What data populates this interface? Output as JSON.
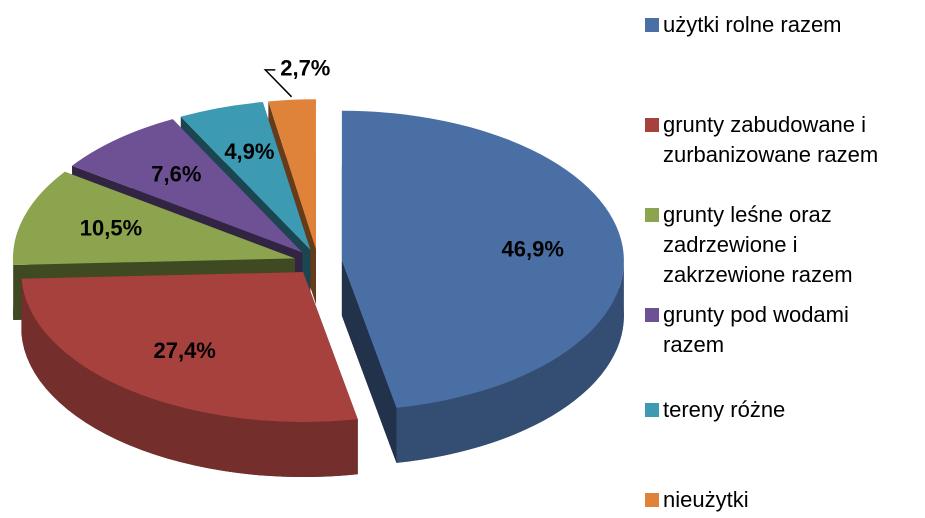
{
  "chart_data": {
    "type": "pie",
    "categories": [
      "użytki rolne razem",
      "grunty zabudowane i zurbanizowane razem",
      "grunty leśne oraz zadrzewione i zakrzewione razem",
      "grunty pod wodami razem",
      "tereny różne",
      "nieużytki"
    ],
    "values": [
      46.9,
      27.4,
      10.5,
      7.6,
      4.9,
      2.7
    ],
    "value_labels": [
      "46,9%",
      "27,4%",
      "10,5%",
      "7,6%",
      "4,9%",
      "2,7%"
    ],
    "colors": [
      "#4a6fa5",
      "#a6413e",
      "#8ca44d",
      "#6e5195",
      "#3d9ab3",
      "#e0833a"
    ],
    "legend": "right"
  }
}
